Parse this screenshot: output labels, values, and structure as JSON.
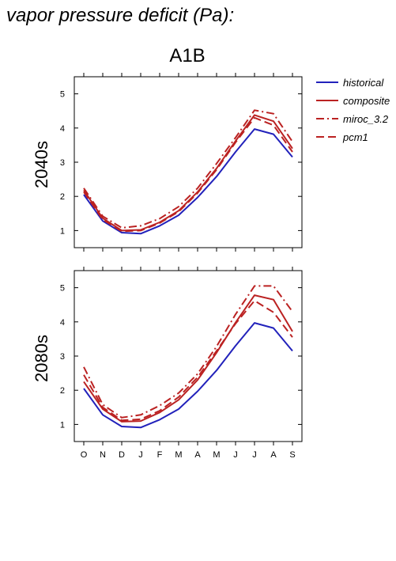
{
  "header": {
    "title": "vapor pressure deficit (Pa):",
    "scenario": "A1B"
  },
  "chart_data": [
    {
      "type": "line",
      "panel": "2040s",
      "categories": [
        "O",
        "N",
        "D",
        "J",
        "F",
        "M",
        "A",
        "M",
        "J",
        "J",
        "A",
        "S"
      ],
      "ylim": [
        0.5,
        5.5
      ],
      "yticks": [
        1,
        2,
        3,
        4,
        5
      ],
      "series": [
        {
          "name": "historical",
          "color": "#2222bb",
          "dash": "solid",
          "values": [
            2.05,
            1.28,
            0.94,
            0.91,
            1.14,
            1.45,
            1.97,
            2.58,
            3.3,
            3.97,
            3.82,
            3.15
          ]
        },
        {
          "name": "composite",
          "color": "#bb2222",
          "dash": "solid",
          "values": [
            2.18,
            1.36,
            1.0,
            1.02,
            1.24,
            1.58,
            2.13,
            2.82,
            3.62,
            4.38,
            4.2,
            3.4
          ]
        },
        {
          "name": "miroc_3.2",
          "color": "#bb2222",
          "dash": "dashdot",
          "values": [
            2.24,
            1.42,
            1.08,
            1.14,
            1.35,
            1.7,
            2.24,
            2.96,
            3.72,
            4.52,
            4.42,
            3.6
          ]
        },
        {
          "name": "pcm1",
          "color": "#bb2222",
          "dash": "dash",
          "values": [
            2.13,
            1.32,
            0.98,
            1.0,
            1.22,
            1.55,
            2.1,
            2.78,
            3.58,
            4.3,
            4.08,
            3.3
          ]
        }
      ]
    },
    {
      "type": "line",
      "panel": "2080s",
      "categories": [
        "O",
        "N",
        "D",
        "J",
        "F",
        "M",
        "A",
        "M",
        "J",
        "J",
        "A",
        "S"
      ],
      "ylim": [
        0.5,
        5.5
      ],
      "yticks": [
        1,
        2,
        3,
        4,
        5
      ],
      "series": [
        {
          "name": "historical",
          "color": "#2222bb",
          "dash": "solid",
          "values": [
            2.05,
            1.28,
            0.94,
            0.91,
            1.14,
            1.45,
            1.97,
            2.58,
            3.3,
            3.97,
            3.82,
            3.15
          ]
        },
        {
          "name": "composite",
          "color": "#bb2222",
          "dash": "solid",
          "values": [
            2.25,
            1.45,
            1.08,
            1.1,
            1.35,
            1.72,
            2.3,
            3.1,
            3.98,
            4.78,
            4.65,
            3.72
          ]
        },
        {
          "name": "miroc_3.2",
          "color": "#bb2222",
          "dash": "dashdot",
          "values": [
            2.68,
            1.58,
            1.2,
            1.28,
            1.55,
            1.92,
            2.48,
            3.28,
            4.22,
            5.05,
            5.05,
            4.3
          ]
        },
        {
          "name": "pcm1",
          "color": "#bb2222",
          "dash": "dash",
          "values": [
            2.45,
            1.5,
            1.12,
            1.15,
            1.4,
            1.8,
            2.38,
            3.15,
            3.95,
            4.62,
            4.28,
            3.55
          ]
        }
      ]
    }
  ]
}
